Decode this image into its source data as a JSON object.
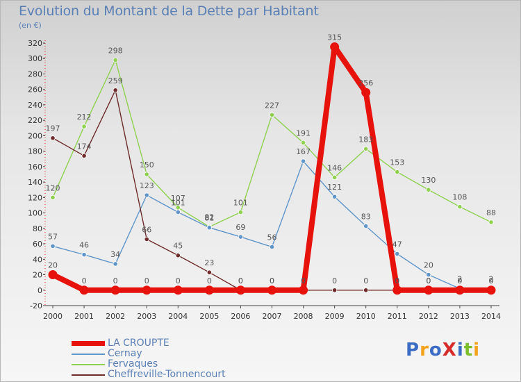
{
  "title": "Evolution du Montant de la Dette par Habitant",
  "unit_label": "(en €)",
  "brand": {
    "text": "ProXiti",
    "colors": [
      "#3a6cc4",
      "#f2a21b",
      "#3a6cc4",
      "#d72b2b",
      "#3a6cc4",
      "#7cbf2b",
      "#f2a21b"
    ]
  },
  "chart_data": {
    "type": "line",
    "title": "Evolution du Montant de la Dette par Habitant",
    "ylabel": "(en €)",
    "xlabel": "",
    "x": [
      "2000",
      "2001",
      "2002",
      "2003",
      "2004",
      "2005",
      "2006",
      "2007",
      "2008",
      "2009",
      "2010",
      "2011",
      "2012",
      "2013",
      "2014"
    ],
    "ylim": [
      -20,
      320
    ],
    "yticks": [
      -20,
      0,
      20,
      40,
      60,
      80,
      100,
      120,
      140,
      160,
      180,
      200,
      220,
      240,
      260,
      280,
      300,
      320
    ],
    "grid": false,
    "legend_position": "bottom-left",
    "series": [
      {
        "name": "LA CROUPTE",
        "color": "#e8120c",
        "values": [
          20,
          0,
          0,
          0,
          0,
          0,
          0,
          0,
          0,
          315,
          256,
          0,
          0,
          0,
          0
        ],
        "labels": [
          "20",
          "0",
          "0",
          "0",
          "0",
          "0",
          "0",
          "0",
          "0",
          "315",
          "256",
          "0",
          "0",
          "0",
          "0"
        ]
      },
      {
        "name": "Cernay",
        "color": "#5f95c9",
        "values": [
          57,
          46,
          34,
          123,
          101,
          81,
          69,
          56,
          167,
          121,
          83,
          47,
          20,
          2,
          2
        ],
        "labels": [
          "57",
          "46",
          "34",
          "123",
          "101",
          "81",
          "69",
          "56",
          "167",
          "121",
          "83",
          "47",
          "20",
          "2",
          "2"
        ]
      },
      {
        "name": "Fervaques",
        "color": "#8fd14e",
        "values": [
          120,
          212,
          298,
          150,
          107,
          82,
          101,
          227,
          191,
          146,
          183,
          153,
          130,
          108,
          88
        ],
        "labels": [
          "120",
          "212",
          "298",
          "150",
          "107",
          "82",
          "101",
          "227",
          "191",
          "146",
          "183",
          "153",
          "130",
          "108",
          "88"
        ]
      },
      {
        "name": "Cheffreville-Tonnencourt",
        "color": "#6e2b2b",
        "values": [
          197,
          174,
          259,
          66,
          45,
          23,
          0,
          0,
          0,
          0,
          0,
          0,
          0,
          0,
          0
        ],
        "labels": [
          "197",
          "174",
          "259",
          "66",
          "45",
          "23",
          "0",
          "0",
          "0",
          "0",
          "0",
          "0",
          "0",
          "0",
          "0"
        ]
      }
    ]
  }
}
